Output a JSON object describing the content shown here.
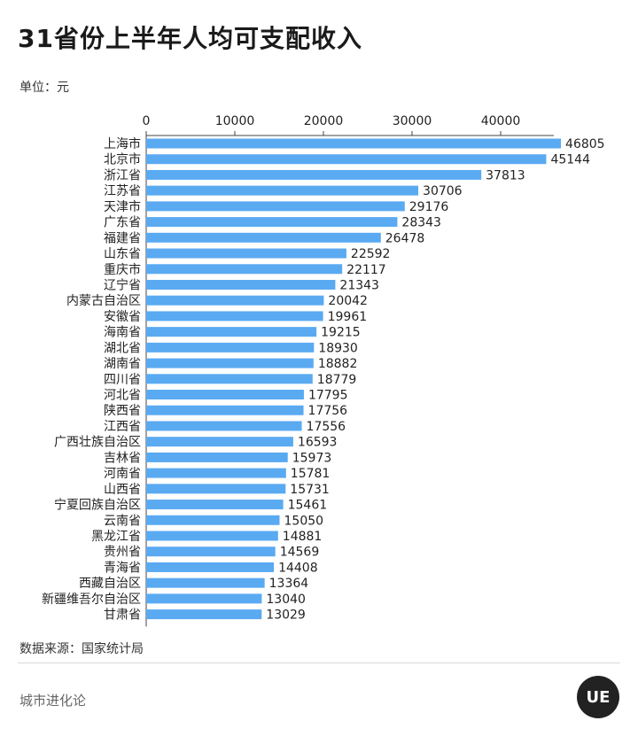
{
  "title": "31省份上半年人均可支配收入",
  "unit_label": "单位：元",
  "source_label": "数据来源：国家统计局",
  "footer_label": "城市进化论",
  "logo_text": "UE",
  "colors": {
    "bar": "#5aaaf2",
    "axis": "#444444",
    "text": "#222222"
  },
  "chart_data": {
    "type": "bar",
    "orientation": "horizontal",
    "title": "31省份上半年人均可支配收入",
    "xlabel": "",
    "ylabel": "",
    "xlim": [
      0,
      48000
    ],
    "xticks": [
      0,
      10000,
      20000,
      30000,
      40000
    ],
    "grid": false,
    "categories": [
      "上海市",
      "北京市",
      "浙江省",
      "江苏省",
      "天津市",
      "广东省",
      "福建省",
      "山东省",
      "重庆市",
      "辽宁省",
      "内蒙古自治区",
      "安徽省",
      "海南省",
      "湖北省",
      "湖南省",
      "四川省",
      "河北省",
      "陕西省",
      "江西省",
      "广西壮族自治区",
      "吉林省",
      "河南省",
      "山西省",
      "宁夏回族自治区",
      "云南省",
      "黑龙江省",
      "贵州省",
      "青海省",
      "西藏自治区",
      "新疆维吾尔自治区",
      "甘肃省"
    ],
    "values": [
      46805,
      45144,
      37813,
      30706,
      29176,
      28343,
      26478,
      22592,
      22117,
      21343,
      20042,
      19961,
      19215,
      18930,
      18882,
      18779,
      17795,
      17756,
      17556,
      16593,
      15973,
      15781,
      15731,
      15461,
      15050,
      14881,
      14569,
      14408,
      13364,
      13040,
      13029
    ]
  }
}
